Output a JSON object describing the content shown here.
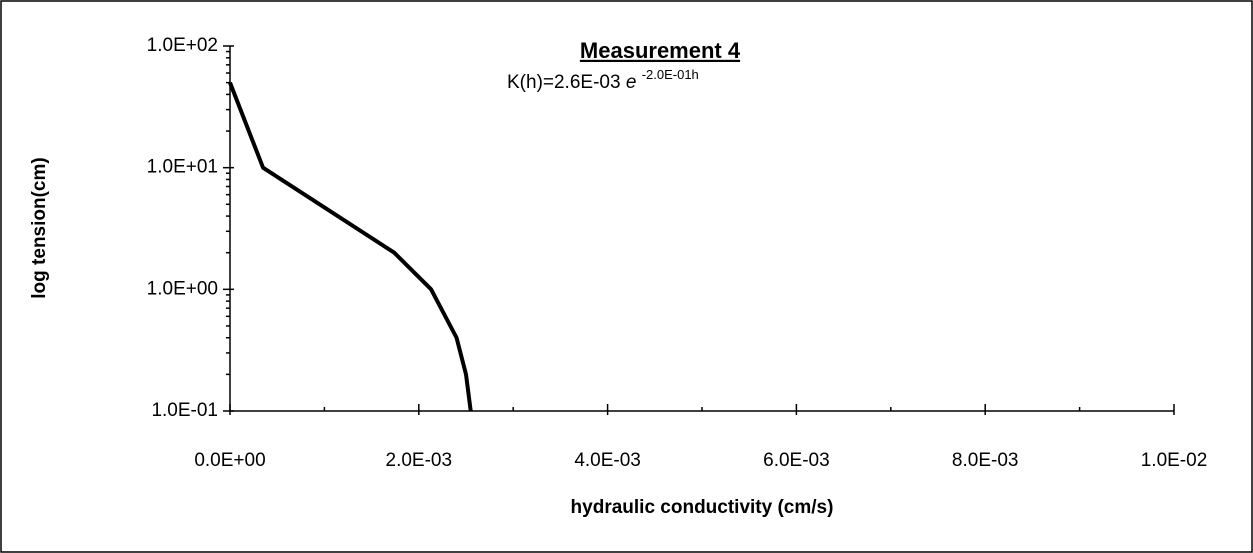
{
  "chart_data": {
    "type": "line",
    "title": "Measurement 4",
    "annotation": {
      "text": "K(h)=2.6E-03",
      "base": "e",
      "exponent": "-2.0E-01h"
    },
    "x_label": "hydraulic conductivity (cm/s)",
    "y_label": "log tension(cm)",
    "yscale": "log",
    "series": [
      {
        "name": "Measurement 4",
        "color": "#000000",
        "x": [
          1e-07,
          0.00035,
          0.00174,
          0.00213,
          0.0024,
          0.0025,
          0.00255
        ],
        "values": [
          50,
          10,
          2,
          1,
          0.4,
          0.2,
          0.1
        ]
      }
    ],
    "xlim": [
      0,
      0.01
    ],
    "ylim": [
      0.1,
      100
    ],
    "xticks": [
      {
        "value": 0,
        "label": "0.0E+00"
      },
      {
        "value": 0.002,
        "label": "2.0E-03"
      },
      {
        "value": 0.004,
        "label": "4.0E-03"
      },
      {
        "value": 0.006,
        "label": "6.0E-03"
      },
      {
        "value": 0.008,
        "label": "8.0E-03"
      },
      {
        "value": 0.01,
        "label": "1.0E-02"
      }
    ],
    "yticks": [
      {
        "value": 0.1,
        "label": "1.0E-01"
      },
      {
        "value": 1,
        "label": "1.0E+00"
      },
      {
        "value": 10,
        "label": "1.0E+01"
      },
      {
        "value": 100,
        "label": "1.0E+02"
      }
    ],
    "grid": false
  }
}
